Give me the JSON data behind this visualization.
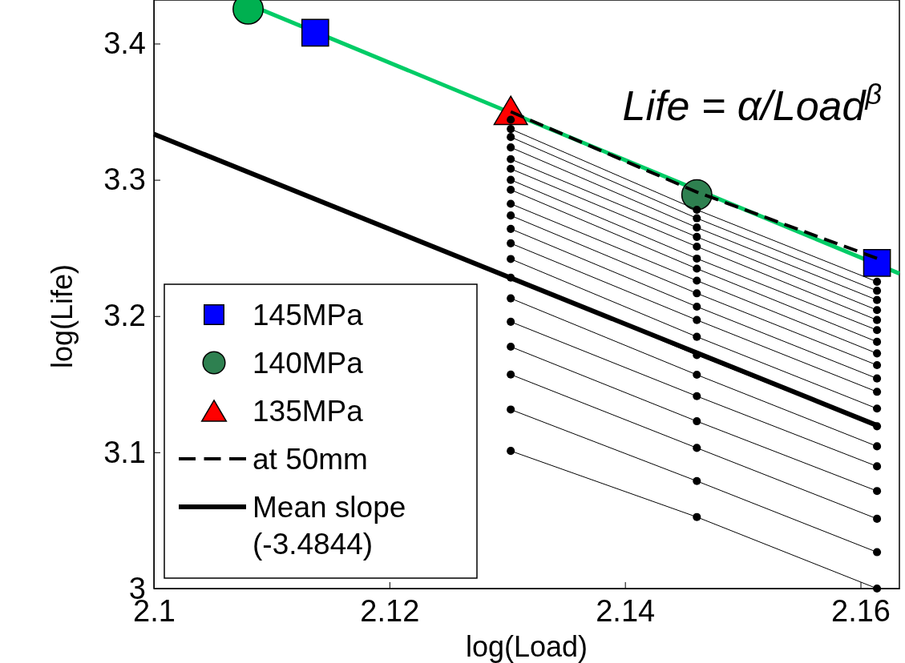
{
  "chart_data": {
    "type": "line",
    "xlabel": "log(Load)",
    "ylabel": "log(Life)",
    "xlim": [
      2.1,
      2.1633
    ],
    "xticks": [
      2.1,
      2.12,
      2.14,
      2.16
    ],
    "ylim": [
      3,
      3.432
    ],
    "yticks": [
      3,
      3.1,
      3.2,
      3.3,
      3.4
    ],
    "legend": "bottom left",
    "grid": false,
    "annotations": [
      "Life = α/Load$^{β}$"
    ],
    "series": [
      {
        "type": "scatter",
        "name": "145MPa",
        "color": "#0000ff",
        "marker": "square",
        "x": [
          2.1137,
          2.1614
        ],
        "values": [
          3.408,
          3.239
        ]
      },
      {
        "type": "scatter",
        "name": "140MPa",
        "color": "#2e8050",
        "colors": [
          "#00b050",
          "#2e8050"
        ],
        "marker": "circle",
        "x": [
          2.108,
          2.1461
        ],
        "values": [
          3.4253,
          3.289
        ]
      },
      {
        "type": "scatter",
        "name": "135MPa",
        "color": "#ff0000",
        "marker": "triangle",
        "x": [
          2.1303
        ],
        "values": [
          3.351
        ]
      },
      {
        "name": "at 50mm",
        "color": "#000000",
        "line_style": "dashed",
        "x": [
          2.1303,
          2.1461,
          2.1614
        ],
        "values": [
          3.35,
          3.291,
          3.2424
        ]
      },
      {
        "name": "Mean slope (-3.4844)",
        "color": "#000000",
        "x": [
          2.1,
          2.1615
        ],
        "values": [
          3.3335,
          3.1194
        ]
      },
      {
        "color": "#00cc66",
        "x": [
          2.1072,
          2.1633
        ],
        "values": [
          3.4318,
          3.2312
        ]
      },
      {
        "color": "#000000",
        "marker": "circle",
        "x": [
          2.1303
        ],
        "values": [
          3.3441
        ]
      },
      {
        "color": "#000000",
        "marker": "circle",
        "x": [
          2.1303,
          2.1461,
          2.1614
        ],
        "values": [
          3.3373,
          3.278,
          3.2252
        ]
      },
      {
        "color": "#000000",
        "marker": "circle",
        "x": [
          2.1303,
          2.1461,
          2.1614
        ],
        "values": [
          3.3314,
          3.2718,
          3.2186
        ]
      },
      {
        "color": "#000000",
        "marker": "circle",
        "x": [
          2.1303,
          2.1461,
          2.1614
        ],
        "values": [
          3.3238,
          3.265,
          3.2118
        ]
      },
      {
        "color": "#000000",
        "marker": "circle",
        "x": [
          2.1303,
          2.1461,
          2.1614
        ],
        "values": [
          3.3152,
          3.2581,
          3.2044
        ]
      },
      {
        "color": "#000000",
        "marker": "circle",
        "x": [
          2.1303,
          2.1461,
          2.1614
        ],
        "values": [
          3.3081,
          3.251,
          3.1971
        ]
      },
      {
        "color": "#000000",
        "marker": "circle",
        "x": [
          2.1303,
          2.1461,
          2.1614
        ],
        "values": [
          3.3,
          3.2422,
          3.1897
        ]
      },
      {
        "color": "#000000",
        "marker": "circle",
        "x": [
          2.1303,
          2.1461,
          2.1614
        ],
        "values": [
          3.2927,
          3.2348,
          3.1811
        ]
      },
      {
        "color": "#000000",
        "marker": "circle",
        "x": [
          2.1303,
          2.1461,
          2.1614
        ],
        "values": [
          3.2824,
          3.226,
          3.1726
        ]
      },
      {
        "color": "#000000",
        "marker": "circle",
        "x": [
          2.1303,
          2.1461,
          2.1614
        ],
        "values": [
          3.2738,
          3.2167,
          3.164
        ]
      },
      {
        "color": "#000000",
        "marker": "circle",
        "x": [
          2.1303,
          2.1461,
          2.1614
        ],
        "values": [
          3.264,
          3.2069,
          3.1542
        ]
      },
      {
        "color": "#000000",
        "marker": "circle",
        "x": [
          2.1303,
          2.1461,
          2.1614
        ],
        "values": [
          3.2534,
          3.1971,
          3.1444
        ]
      },
      {
        "color": "#000000",
        "marker": "circle",
        "x": [
          2.1303,
          2.1461,
          2.1614
        ],
        "values": [
          3.2419,
          3.1848,
          3.1321
        ]
      },
      {
        "color": "#000000",
        "marker": "circle",
        "x": [
          2.1303,
          2.1461,
          2.1614
        ],
        "values": [
          3.2282,
          3.1713,
          3.1191
        ]
      },
      {
        "color": "#000000",
        "marker": "circle",
        "x": [
          2.1303,
          2.1461,
          2.1614
        ],
        "values": [
          3.213,
          3.1569,
          3.1044
        ]
      },
      {
        "color": "#000000",
        "marker": "circle",
        "x": [
          2.1303,
          2.1461,
          2.1614
        ],
        "values": [
          3.1958,
          3.1412,
          3.0897
        ]
      },
      {
        "color": "#000000",
        "marker": "circle",
        "x": [
          2.1303,
          2.1461,
          2.1614
        ],
        "values": [
          3.1775,
          3.1228,
          3.0716
        ]
      },
      {
        "color": "#000000",
        "marker": "circle",
        "x": [
          2.1303,
          2.1461,
          2.1614
        ],
        "values": [
          3.1571,
          3.1032,
          3.0512
        ]
      },
      {
        "color": "#000000",
        "marker": "circle",
        "x": [
          2.1303,
          2.1461,
          2.1614
        ],
        "values": [
          3.1314,
          3.0789,
          3.0267
        ]
      },
      {
        "color": "#000000",
        "marker": "circle",
        "x": [
          2.1303,
          2.1461,
          2.1614
        ],
        "values": [
          3.101,
          3.0525,
          3.0
        ]
      }
    ]
  }
}
